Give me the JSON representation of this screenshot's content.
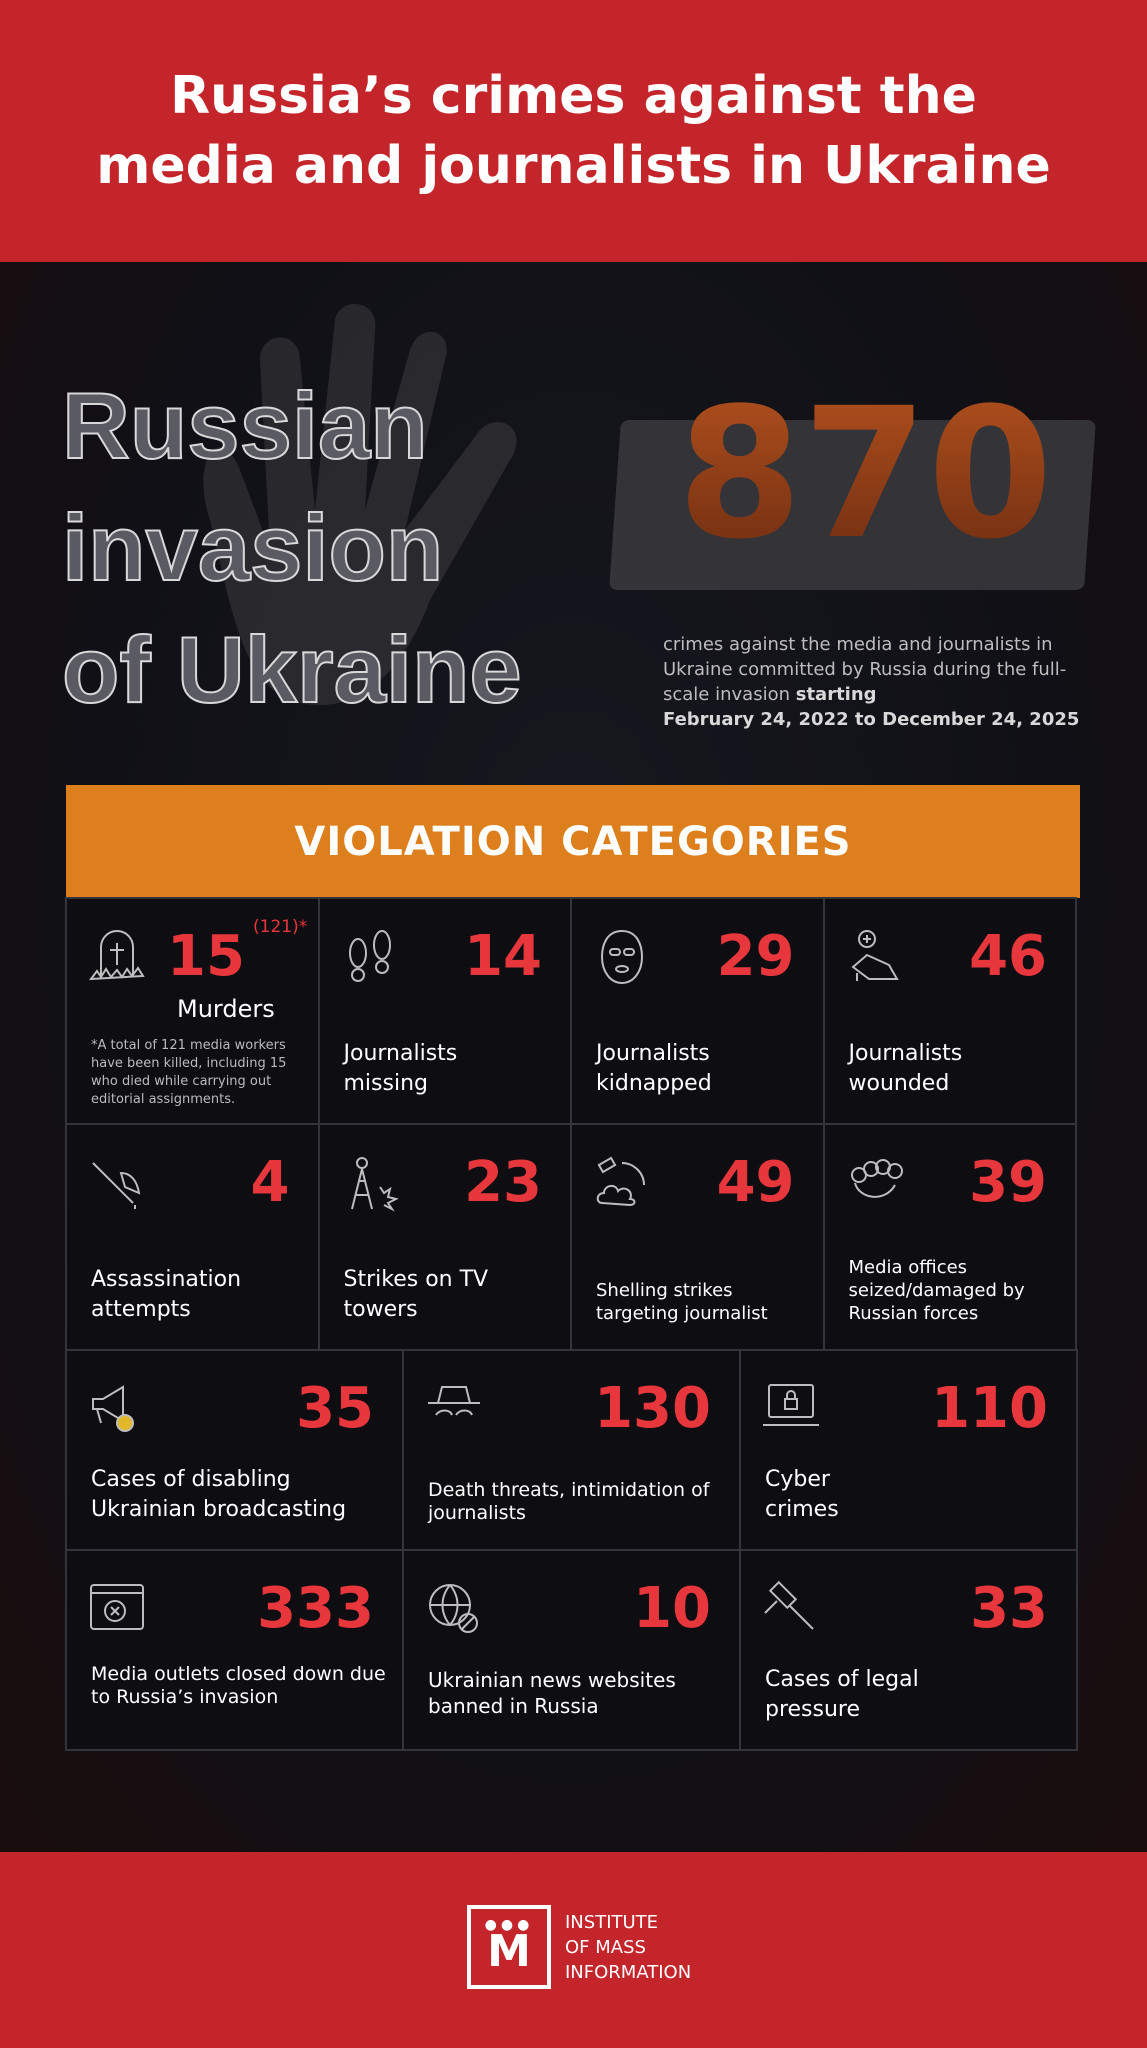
{
  "header": {
    "title": "Russia’s crimes against the media and journalists in Ukraine"
  },
  "hero": {
    "outline_lines": [
      "Russian",
      "invasion",
      "of Ukraine"
    ],
    "total": "870",
    "description": "crimes against the media and journalists in Ukraine committed by Russia during the full-scale invasion",
    "description_bold": "starting",
    "date_range": "February 24, 2022 to December 24, 2025"
  },
  "colors": {
    "header_red": "#c4252b",
    "banner_orange": "#dd7f1c",
    "number_red": "#e8373c",
    "background": "#0f0f14"
  },
  "banner": {
    "title": "VIOLATION CATEGORIES"
  },
  "categories": [
    {
      "icon": "grave-icon",
      "value": "15",
      "superscript": "(121)*",
      "label": "Murders",
      "note": "*A total of 121 media workers have been killed, including 15 who died while carrying out editorial assignments."
    },
    {
      "icon": "footprints-icon",
      "value": "14",
      "label": "Journalists missing"
    },
    {
      "icon": "balaclava-icon",
      "value": "29",
      "label": "Journalists kidnapped"
    },
    {
      "icon": "wounded-hand-icon",
      "value": "46",
      "label": "Journalists wounded"
    },
    {
      "icon": "axe-icon",
      "value": "4",
      "label": "Assassination attempts"
    },
    {
      "icon": "tv-tower-strike-icon",
      "value": "23",
      "label": "Strikes on TV towers"
    },
    {
      "icon": "shelling-icon",
      "value": "49",
      "label": "Shelling strikes targeting journalist"
    },
    {
      "icon": "brass-knuckles-icon",
      "value": "39",
      "label": "Media offices seized/damaged by Russian forces"
    },
    {
      "icon": "megaphone-icon",
      "value": "35",
      "label": "Cases of disabling Ukrainian broadcasting"
    },
    {
      "icon": "spy-hat-icon",
      "value": "130",
      "label": "Death threats, intimidation of journalists"
    },
    {
      "icon": "laptop-lock-icon",
      "value": "110",
      "label": "Cyber crimes"
    },
    {
      "icon": "closed-browser-icon",
      "value": "333",
      "label": "Media outlets closed down due to Russia’s invasion"
    },
    {
      "icon": "globe-ban-icon",
      "value": "10",
      "label": "Ukrainian news websites banned in Russia"
    },
    {
      "icon": "gavel-icon",
      "value": "33",
      "label": "Cases of legal pressure"
    }
  ],
  "footer": {
    "logo_letter": "M",
    "logo_text": [
      "INSTITUTE",
      "OF MASS",
      "INFORMATION"
    ]
  }
}
